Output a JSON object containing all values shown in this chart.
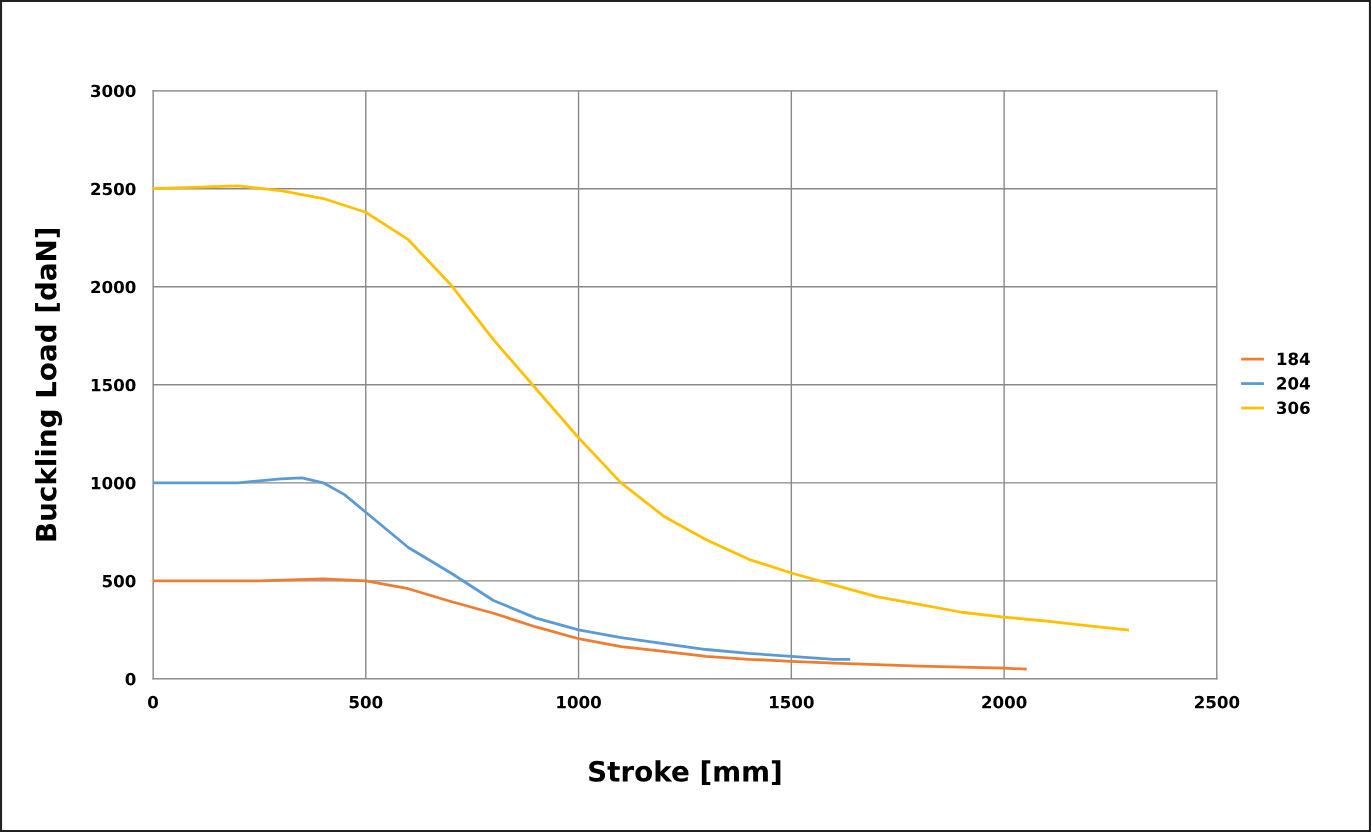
{
  "chart_data": {
    "type": "line",
    "xlabel": "Stroke [mm]",
    "ylabel": "Buckling Load [daN]",
    "xlim": [
      0,
      2500
    ],
    "xticks": [
      0,
      500,
      1000,
      1500,
      2000,
      2500
    ],
    "ylim": [
      0,
      3000
    ],
    "yticks": [
      0,
      500,
      1000,
      1500,
      2000,
      2500,
      3000
    ],
    "grid": true,
    "legend": "right",
    "line_style": "solid",
    "marker": "none",
    "series": [
      {
        "name": "184",
        "color": "#ed7d31",
        "x": [
          0,
          250,
          400,
          500,
          600,
          700,
          800,
          900,
          1000,
          1100,
          1200,
          1300,
          1400,
          1500,
          1600,
          1800,
          2000,
          2050
        ],
        "values": [
          500,
          500,
          510,
          500,
          460,
          395,
          335,
          265,
          205,
          165,
          140,
          115,
          100,
          90,
          80,
          65,
          55,
          50
        ]
      },
      {
        "name": "204",
        "color": "#5b9bd5",
        "x": [
          0,
          200,
          300,
          350,
          400,
          450,
          500,
          600,
          700,
          800,
          900,
          1000,
          1100,
          1200,
          1300,
          1400,
          1500,
          1600,
          1635
        ],
        "values": [
          1000,
          1000,
          1020,
          1025,
          1000,
          940,
          850,
          670,
          540,
          400,
          310,
          250,
          210,
          180,
          150,
          130,
          115,
          100,
          100
        ]
      },
      {
        "name": "306",
        "color": "#ffc000",
        "x": [
          0,
          200,
          300,
          400,
          500,
          600,
          700,
          800,
          900,
          1000,
          1100,
          1200,
          1300,
          1400,
          1500,
          1600,
          1700,
          1800,
          1900,
          2000,
          2100,
          2200,
          2290
        ],
        "values": [
          2500,
          2515,
          2490,
          2450,
          2380,
          2240,
          2010,
          1730,
          1480,
          1230,
          1000,
          830,
          710,
          610,
          540,
          480,
          420,
          380,
          340,
          315,
          295,
          270,
          250
        ]
      }
    ]
  }
}
